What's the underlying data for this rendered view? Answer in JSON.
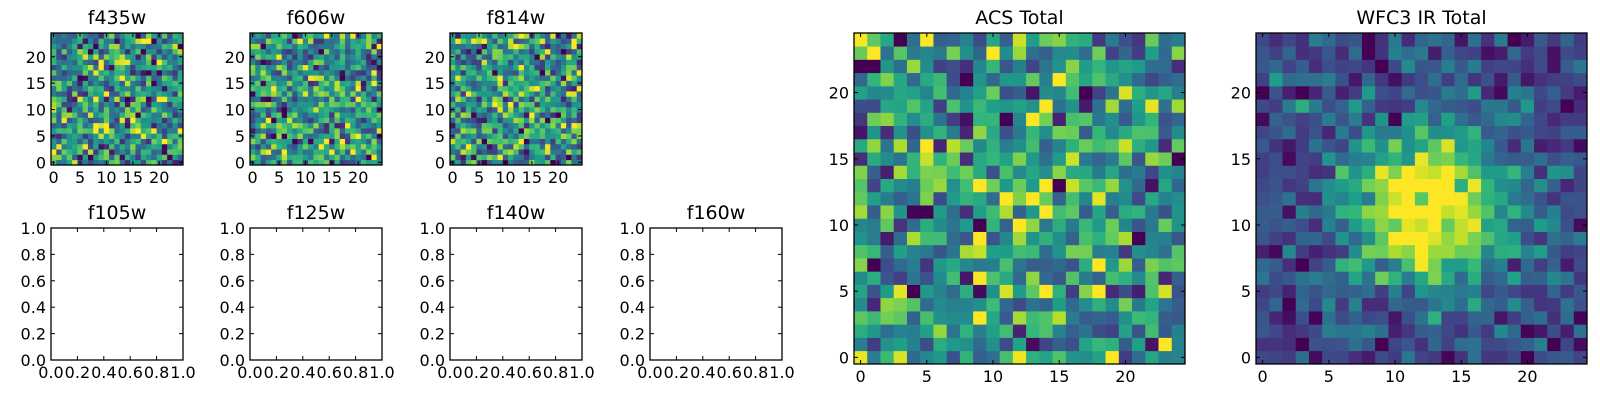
{
  "chart_data": [
    {
      "type": "heatmap",
      "title": "f435w",
      "xticks": [
        "0",
        "5",
        "10",
        "15",
        "20"
      ],
      "yticks": [
        "0",
        "5",
        "10",
        "15",
        "20"
      ],
      "xlim": [
        -0.5,
        24.5
      ],
      "ylim": [
        -0.5,
        24.5
      ],
      "grid_size": 25,
      "colormap": "viridis",
      "peak": 0.0,
      "noise": 1.0
    },
    {
      "type": "heatmap",
      "title": "f606w",
      "xticks": [
        "0",
        "5",
        "10",
        "15",
        "20"
      ],
      "yticks": [
        "0",
        "5",
        "10",
        "15",
        "20"
      ],
      "xlim": [
        -0.5,
        24.5
      ],
      "ylim": [
        -0.5,
        24.5
      ],
      "grid_size": 25,
      "colormap": "viridis",
      "peak": 0.1,
      "noise": 1.0
    },
    {
      "type": "heatmap",
      "title": "f814w",
      "xticks": [
        "0",
        "5",
        "10",
        "15",
        "20"
      ],
      "yticks": [
        "0",
        "5",
        "10",
        "15",
        "20"
      ],
      "xlim": [
        -0.5,
        24.5
      ],
      "ylim": [
        -0.5,
        24.5
      ],
      "grid_size": 25,
      "colormap": "viridis",
      "peak": 0.2,
      "noise": 1.0
    },
    {
      "type": "empty",
      "title": "f105w",
      "xticks": [
        "0.0",
        "0.2",
        "0.4",
        "0.6",
        "0.8",
        "1.0"
      ],
      "yticks": [
        "0.0",
        "0.2",
        "0.4",
        "0.6",
        "0.8",
        "1.0"
      ],
      "xlim": [
        0,
        1
      ],
      "ylim": [
        0,
        1
      ]
    },
    {
      "type": "empty",
      "title": "f125w",
      "xticks": [
        "0.0",
        "0.2",
        "0.4",
        "0.6",
        "0.8",
        "1.0"
      ],
      "yticks": [
        "0.0",
        "0.2",
        "0.4",
        "0.6",
        "0.8",
        "1.0"
      ],
      "xlim": [
        0,
        1
      ],
      "ylim": [
        0,
        1
      ]
    },
    {
      "type": "empty",
      "title": "f140w",
      "xticks": [
        "0.0",
        "0.2",
        "0.4",
        "0.6",
        "0.8",
        "1.0"
      ],
      "yticks": [
        "0.0",
        "0.2",
        "0.4",
        "0.6",
        "0.8",
        "1.0"
      ],
      "xlim": [
        0,
        1
      ],
      "ylim": [
        0,
        1
      ]
    },
    {
      "type": "empty",
      "title": "f160w",
      "xticks": [
        "0.0",
        "0.2",
        "0.4",
        "0.6",
        "0.8",
        "1.0"
      ],
      "yticks": [
        "0.0",
        "0.2",
        "0.4",
        "0.6",
        "0.8",
        "1.0"
      ],
      "xlim": [
        0,
        1
      ],
      "ylim": [
        0,
        1
      ]
    },
    {
      "type": "heatmap",
      "title": "ACS Total",
      "xticks": [
        "0",
        "5",
        "10",
        "15",
        "20"
      ],
      "yticks": [
        "0",
        "5",
        "10",
        "15",
        "20"
      ],
      "xlim": [
        -0.5,
        24.5
      ],
      "ylim": [
        -0.5,
        24.5
      ],
      "grid_size": 25,
      "colormap": "viridis",
      "peak": 0.25,
      "noise": 1.0
    },
    {
      "type": "heatmap",
      "title": "WFC3 IR Total",
      "xticks": [
        "0",
        "5",
        "10",
        "15",
        "20"
      ],
      "yticks": [
        "0",
        "5",
        "10",
        "15",
        "20"
      ],
      "xlim": [
        -0.5,
        24.5
      ],
      "ylim": [
        -0.5,
        24.5
      ],
      "grid_size": 25,
      "colormap": "viridis",
      "peak": 1.0,
      "noise": 0.45
    }
  ]
}
